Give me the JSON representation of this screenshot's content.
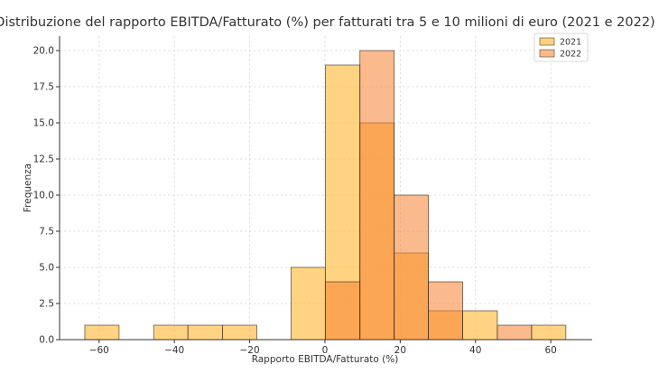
{
  "chart_data": {
    "type": "bar",
    "title": "Distribuzione del rapporto EBITDA/Fatturato (%) per fatturati tra 5 e 10 milioni di euro (2021 e 2022)",
    "xlabel": "Rapporto EBITDA/Fatturato (%)",
    "ylabel": "Frequenza",
    "xlim": [
      -70.5,
      71
    ],
    "ylim": [
      0,
      21
    ],
    "x_ticks": [
      -60,
      -40,
      -20,
      0,
      20,
      40,
      60
    ],
    "y_ticks": [
      0,
      2.5,
      5,
      7.5,
      10,
      12.5,
      15,
      17.5,
      20
    ],
    "x_tick_labels": [
      "−60",
      "−40",
      "−20",
      "0",
      "20",
      "40",
      "60"
    ],
    "y_tick_labels": [
      "0.0",
      "2.5",
      "5.0",
      "7.5",
      "10.0",
      "12.5",
      "15.0",
      "17.5",
      "20.0"
    ],
    "grid": true,
    "legend_position": "top-right",
    "series": [
      {
        "name": "2021",
        "color": "#FFC04D",
        "opacity": 0.7,
        "bins": [
          {
            "x0": -63.8,
            "x1": -54.7,
            "value": 1
          },
          {
            "x0": -45.5,
            "x1": -36.4,
            "value": 1
          },
          {
            "x0": -36.4,
            "x1": -27.2,
            "value": 1
          },
          {
            "x0": -27.2,
            "x1": -18.1,
            "value": 1
          },
          {
            "x0": -9.0,
            "x1": 0.1,
            "value": 5
          },
          {
            "x0": 0.1,
            "x1": 9.3,
            "value": 19
          },
          {
            "x0": 9.3,
            "x1": 18.4,
            "value": 15
          },
          {
            "x0": 18.4,
            "x1": 27.5,
            "value": 6
          },
          {
            "x0": 27.5,
            "x1": 36.6,
            "value": 2
          },
          {
            "x0": 36.6,
            "x1": 45.8,
            "value": 2
          },
          {
            "x0": 54.9,
            "x1": 64.0,
            "value": 1
          }
        ]
      },
      {
        "name": "2022",
        "color": "#F58231",
        "opacity": 0.55,
        "bins": [
          {
            "x0": 0.1,
            "x1": 9.3,
            "value": 4
          },
          {
            "x0": 9.3,
            "x1": 18.4,
            "value": 20
          },
          {
            "x0": 18.4,
            "x1": 27.5,
            "value": 10
          },
          {
            "x0": 27.5,
            "x1": 36.6,
            "value": 4
          },
          {
            "x0": 45.8,
            "x1": 54.9,
            "value": 1
          }
        ]
      }
    ]
  }
}
